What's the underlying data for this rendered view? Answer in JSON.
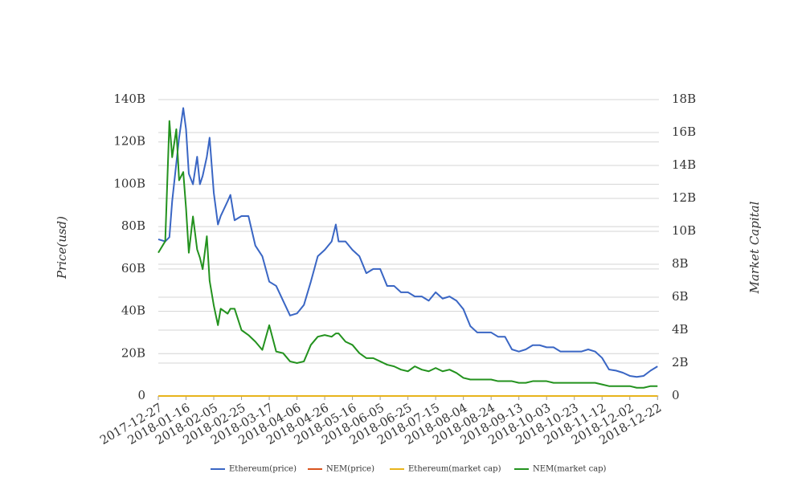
{
  "chart_data": {
    "type": "line",
    "ylabel": "Price(usd)",
    "y2label": "Market Capital",
    "x": [
      "2017-12-27",
      "2018-01-01",
      "2018-01-04",
      "2018-01-06",
      "2018-01-09",
      "2018-01-11",
      "2018-01-14",
      "2018-01-16",
      "2018-01-18",
      "2018-01-21",
      "2018-01-24",
      "2018-01-26",
      "2018-01-28",
      "2018-01-31",
      "2018-02-02",
      "2018-02-05",
      "2018-02-08",
      "2018-02-10",
      "2018-02-15",
      "2018-02-17",
      "2018-02-20",
      "2018-02-25",
      "2018-03-02",
      "2018-03-07",
      "2018-03-12",
      "2018-03-17",
      "2018-03-22",
      "2018-03-27",
      "2018-04-01",
      "2018-04-06",
      "2018-04-11",
      "2018-04-16",
      "2018-04-21",
      "2018-04-26",
      "2018-05-01",
      "2018-05-04",
      "2018-05-06",
      "2018-05-11",
      "2018-05-16",
      "2018-05-21",
      "2018-05-26",
      "2018-05-31",
      "2018-06-05",
      "2018-06-10",
      "2018-06-15",
      "2018-06-20",
      "2018-06-25",
      "2018-06-30",
      "2018-07-05",
      "2018-07-10",
      "2018-07-15",
      "2018-07-20",
      "2018-07-25",
      "2018-07-30",
      "2018-08-04",
      "2018-08-09",
      "2018-08-14",
      "2018-08-19",
      "2018-08-24",
      "2018-08-29",
      "2018-09-03",
      "2018-09-08",
      "2018-09-13",
      "2018-09-18",
      "2018-09-23",
      "2018-09-28",
      "2018-10-03",
      "2018-10-08",
      "2018-10-13",
      "2018-10-18",
      "2018-10-23",
      "2018-10-28",
      "2018-11-02",
      "2018-11-07",
      "2018-11-12",
      "2018-11-17",
      "2018-11-22",
      "2018-11-27",
      "2018-12-02",
      "2018-12-07",
      "2018-12-12",
      "2018-12-17",
      "2018-12-22"
    ],
    "xlim": [
      "2017-12-27",
      "2018-12-23"
    ],
    "xticks": [
      "2017-12-27",
      "2018-01-16",
      "2018-02-05",
      "2018-02-25",
      "2018-03-17",
      "2018-04-06",
      "2018-04-26",
      "2018-05-16",
      "2018-06-05",
      "2018-06-25",
      "2018-07-15",
      "2018-08-04",
      "2018-08-24",
      "2018-09-13",
      "2018-10-03",
      "2018-10-23",
      "2018-11-12",
      "2018-12-02",
      "2018-12-22"
    ],
    "ylim": [
      0,
      140000000000.0
    ],
    "yticks": [
      0,
      {
        "value": 20000000000.0,
        "label": "20B"
      },
      {
        "value": 40000000000.0,
        "label": "40B"
      },
      {
        "value": 60000000000.0,
        "label": "60B"
      },
      {
        "value": 80000000000.0,
        "label": "80B"
      },
      {
        "value": 100000000000.0,
        "label": "100B"
      },
      {
        "value": 120000000000.0,
        "label": "120B"
      },
      {
        "value": 140000000000.0,
        "label": "140B"
      }
    ],
    "y2lim": [
      0,
      18000000000.0
    ],
    "y2ticks": [
      0,
      {
        "value": 2000000000.0,
        "label": "2B"
      },
      {
        "value": 4000000000.0,
        "label": "4B"
      },
      {
        "value": 6000000000.0,
        "label": "6B"
      },
      {
        "value": 8000000000.0,
        "label": "8B"
      },
      {
        "value": 10000000000.0,
        "label": "10B"
      },
      {
        "value": 12000000000.0,
        "label": "12B"
      },
      {
        "value": 14000000000.0,
        "label": "14B"
      },
      {
        "value": 16000000000.0,
        "label": "16B"
      },
      {
        "value": 18000000000.0,
        "label": "18B"
      }
    ],
    "grid": true,
    "legend": "bottom",
    "series": [
      {
        "name": "Ethereum(price)",
        "color": "#3a66c4",
        "axis": "y",
        "values": [
          74000000000.0,
          73000000000.0,
          75000000000.0,
          92000000000.0,
          110000000000.0,
          122000000000.0,
          136000000000.0,
          126000000000.0,
          105000000000.0,
          100000000000.0,
          113000000000.0,
          100000000000.0,
          104000000000.0,
          113000000000.0,
          122000000000.0,
          96000000000.0,
          81000000000.0,
          85000000000.0,
          92000000000.0,
          95000000000.0,
          83000000000.0,
          85000000000.0,
          85000000000.0,
          71000000000.0,
          66000000000.0,
          54000000000.0,
          52000000000.0,
          45000000000.0,
          38000000000.0,
          39000000000.0,
          43000000000.0,
          54000000000.0,
          66000000000.0,
          69000000000.0,
          73000000000.0,
          81000000000.0,
          73000000000.0,
          73000000000.0,
          69000000000.0,
          66000000000.0,
          58000000000.0,
          60000000000.0,
          60000000000.0,
          52000000000.0,
          52000000000.0,
          49000000000.0,
          49000000000.0,
          47000000000.0,
          47000000000.0,
          45000000000.0,
          49000000000.0,
          46000000000.0,
          47000000000.0,
          45000000000.0,
          41000000000.0,
          33000000000.0,
          30000000000.0,
          30000000000.0,
          30000000000.0,
          28000000000.0,
          28000000000.0,
          22000000000.0,
          21000000000.0,
          22000000000.0,
          24000000000.0,
          24000000000.0,
          23000000000.0,
          23000000000.0,
          21000000000.0,
          21000000000.0,
          21000000000.0,
          21000000000.0,
          22000000000.0,
          21000000000.0,
          18000000000.0,
          12500000000.0,
          12000000000.0,
          11000000000.0,
          9500000000.0,
          9000000000.0,
          9500000000.0,
          12000000000.0,
          14000000000.0
        ]
      },
      {
        "name": "NEM(price)",
        "color": "#d9541e",
        "axis": "y",
        "values": [
          0,
          0,
          0,
          0,
          0,
          0,
          0,
          0,
          0,
          0,
          0,
          0,
          0,
          0,
          0,
          0,
          0,
          0,
          0,
          0,
          0,
          0,
          0,
          0,
          0,
          0,
          0,
          0,
          0,
          0,
          0,
          0,
          0,
          0,
          0,
          0,
          0,
          0,
          0,
          0,
          0,
          0,
          0,
          0,
          0,
          0,
          0,
          0,
          0,
          0,
          0,
          0,
          0,
          0,
          0,
          0,
          0,
          0,
          0,
          0,
          0,
          0,
          0,
          0,
          0,
          0,
          0,
          0,
          0,
          0,
          0,
          0,
          0,
          0,
          0,
          0,
          0,
          0,
          0,
          0,
          0,
          0,
          0
        ]
      },
      {
        "name": "Ethereum(market cap)",
        "color": "#e8b41c",
        "axis": "y2",
        "values": [
          0,
          0,
          0,
          0,
          0,
          0,
          0,
          0,
          0,
          0,
          0,
          0,
          0,
          0,
          0,
          0,
          0,
          0,
          0,
          0,
          0,
          0,
          0,
          0,
          0,
          0,
          0,
          0,
          0,
          0,
          0,
          0,
          0,
          0,
          0,
          0,
          0,
          0,
          0,
          0,
          0,
          0,
          0,
          0,
          0,
          0,
          0,
          0,
          0,
          0,
          0,
          0,
          0,
          0,
          0,
          0,
          0,
          0,
          0,
          0,
          0,
          0,
          0,
          0,
          0,
          0,
          0,
          0,
          0,
          0,
          0,
          0,
          0,
          0,
          0,
          0,
          0,
          0,
          0,
          0,
          0,
          0,
          0
        ]
      },
      {
        "name": "NEM(market cap)",
        "color": "#23921e",
        "axis": "y2",
        "values": [
          8700000000.0,
          9400000000.0,
          16700000000.0,
          14500000000.0,
          16200000000.0,
          13100000000.0,
          13600000000.0,
          11400000000.0,
          8700000000.0,
          10900000000.0,
          8900000000.0,
          8400000000.0,
          7700000000.0,
          9700000000.0,
          7000000000.0,
          5500000000.0,
          4300000000.0,
          5300000000.0,
          5000000000.0,
          5300000000.0,
          5300000000.0,
          4000000000.0,
          3700000000.0,
          3300000000.0,
          2800000000.0,
          4300000000.0,
          2700000000.0,
          2600000000.0,
          2100000000.0,
          2000000000.0,
          2100000000.0,
          3100000000.0,
          3600000000.0,
          3700000000.0,
          3600000000.0,
          3800000000.0,
          3800000000.0,
          3300000000.0,
          3100000000.0,
          2600000000.0,
          2300000000.0,
          2300000000.0,
          2100000000.0,
          1900000000.0,
          1800000000.0,
          1600000000.0,
          1500000000.0,
          1800000000.0,
          1600000000.0,
          1500000000.0,
          1700000000.0,
          1500000000.0,
          1600000000.0,
          1400000000.0,
          1100000000.0,
          1000000000.0,
          1000000000.0,
          1000000000.0,
          1000000000.0,
          900000000.0,
          900000000.0,
          900000000.0,
          800000000.0,
          800000000.0,
          900000000.0,
          900000000.0,
          900000000.0,
          800000000.0,
          800000000.0,
          800000000.0,
          800000000.0,
          800000000.0,
          800000000.0,
          800000000.0,
          700000000.0,
          600000000.0,
          600000000.0,
          600000000.0,
          600000000.0,
          500000000.0,
          500000000.0,
          600000000.0,
          600000000.0
        ]
      }
    ]
  }
}
